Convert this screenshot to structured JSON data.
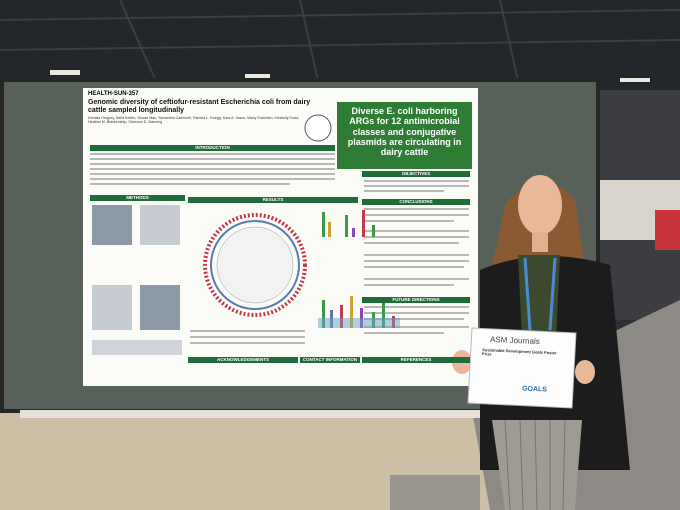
{
  "poster": {
    "code": "HEALTH-SUN-357",
    "title": "Genomic diversity of ceftiofur-resistant Escherichia coli from dairy cattle sampled longitudinally",
    "authors": "Denalia Gregory, Nelia Kettler, Xincan Mao, Samantha Carbonell, Pamela L. Ruegg, Kara A. Vasco, Marty Soehnlen, Kimberly Dodd, Heather M. Blankenship, Shannon D. Manning",
    "headline": "Diverse E. coli harboring ARGs for 12 antimicrobial classes and conjugative plasmids are circulating in dairy cattle",
    "sections": {
      "introduction": "INTRODUCTION",
      "methods": "METHODS",
      "results": "RESULTS",
      "objectives": "OBJECTIVES",
      "conclusions": "CONCLUSIONS",
      "future": "FUTURE DIRECTIONS",
      "acknowledgements": "ACKNOWLEDGEMENTS",
      "contact": "CONTACT INFORMATION",
      "references": "REFERENCES"
    }
  },
  "certificate": {
    "brand": "ASM Journals",
    "award": "Sustainable Development Goals Poster Prize",
    "goals": "GOALS"
  }
}
